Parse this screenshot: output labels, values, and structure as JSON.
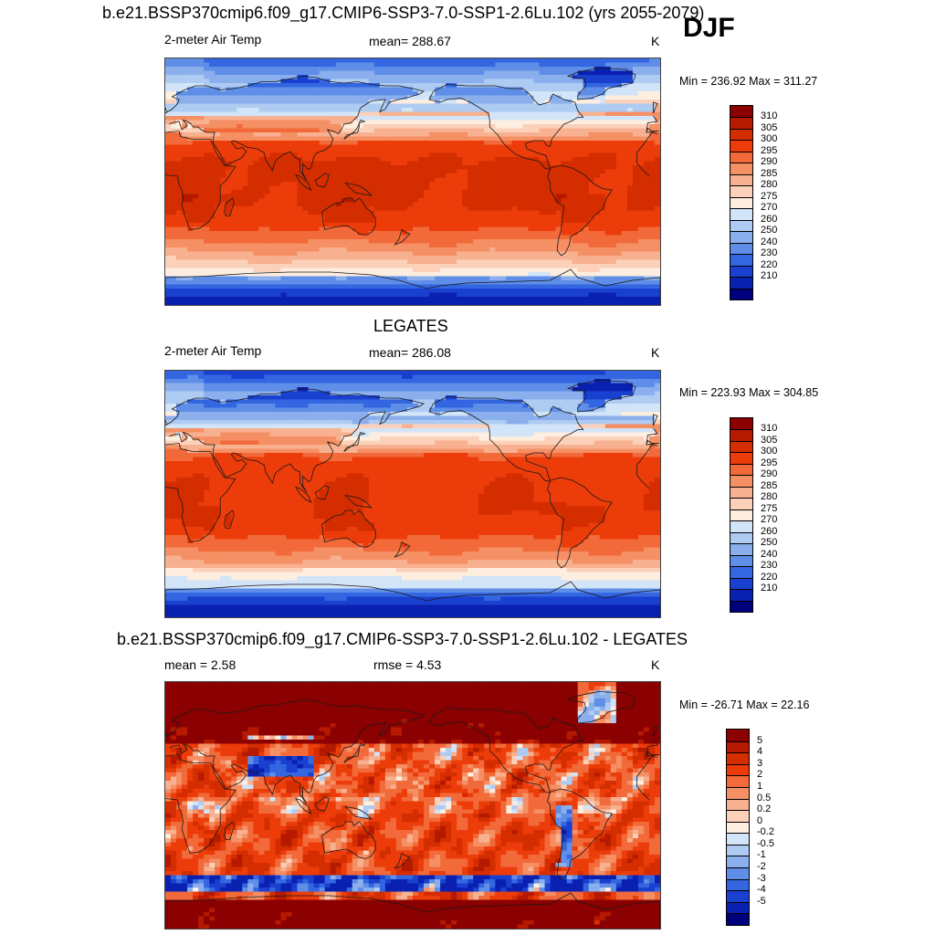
{
  "page": {
    "title": "b.e21.BSSP370cmip6.f09_g17.CMIP6-SSP3-7.0-SSP1-2.6Lu.102 (yrs 2055-2079)",
    "season": "DJF"
  },
  "panels": [
    {
      "id": "model",
      "heading": "",
      "left_label": "2-meter Air Temp",
      "center_label": "mean= 288.67",
      "right_label": "K",
      "minmax": "Min = 236.92 Max = 311.27"
    },
    {
      "id": "obs",
      "heading": "LEGATES",
      "left_label": "2-meter Air Temp",
      "center_label": "mean= 286.08",
      "right_label": "K",
      "minmax": "Min = 223.93 Max = 304.85"
    },
    {
      "id": "diff",
      "heading": "b.e21.BSSP370cmip6.f09_g17.CMIP6-SSP3-7.0-SSP1-2.6Lu.102 - LEGATES",
      "left_label": "mean =   2.58",
      "center_label": "rmse =   4.53",
      "right_label": "K",
      "minmax": "Min = -26.71 Max =  22.16"
    }
  ],
  "chart_data": [
    {
      "type": "heatmap",
      "title": "2-meter Air Temp",
      "units": "K",
      "mean": 288.67,
      "min": 236.92,
      "max": 311.27,
      "levels": [
        210,
        220,
        230,
        240,
        250,
        260,
        270,
        275,
        280,
        285,
        290,
        295,
        300,
        305,
        310
      ],
      "tick_labels": [
        "310",
        "305",
        "300",
        "295",
        "290",
        "285",
        "280",
        "275",
        "270",
        "260",
        "250",
        "240",
        "230",
        "220",
        "210"
      ],
      "colors_top_to_bottom": [
        "#8b0000",
        "#b51a00",
        "#d42d00",
        "#ec3c0a",
        "#f26a3a",
        "#f58f64",
        "#f8b190",
        "#fbd1ba",
        "#fdeee0",
        "#d2e4f8",
        "#aecbf2",
        "#8aafec",
        "#5f8ee8",
        "#3366e0",
        "#1a40d0",
        "#0a20b0",
        "#00007f"
      ]
    },
    {
      "type": "heatmap",
      "title": "2-meter Air Temp",
      "units": "K",
      "mean": 286.08,
      "min": 223.93,
      "max": 304.85,
      "levels": [
        210,
        220,
        230,
        240,
        250,
        260,
        270,
        275,
        280,
        285,
        290,
        295,
        300,
        305,
        310
      ],
      "tick_labels": [
        "310",
        "305",
        "300",
        "295",
        "290",
        "285",
        "280",
        "275",
        "270",
        "260",
        "250",
        "240",
        "230",
        "220",
        "210"
      ],
      "colors_top_to_bottom": [
        "#8b0000",
        "#b51a00",
        "#d42d00",
        "#ec3c0a",
        "#f26a3a",
        "#f58f64",
        "#f8b190",
        "#fbd1ba",
        "#fdeee0",
        "#d2e4f8",
        "#aecbf2",
        "#8aafec",
        "#5f8ee8",
        "#3366e0",
        "#1a40d0",
        "#0a20b0",
        "#00007f"
      ]
    },
    {
      "type": "heatmap",
      "title": "b.e21.BSSP370cmip6.f09_g17.CMIP6-SSP3-7.0-SSP1-2.6Lu.102 - LEGATES",
      "units": "K",
      "mean": 2.58,
      "rmse": 4.53,
      "min": -26.71,
      "max": 22.16,
      "levels": [
        -5,
        -4,
        -3,
        -2,
        -1,
        -0.5,
        -0.2,
        0,
        0.2,
        0.5,
        1,
        2,
        3,
        4,
        5
      ],
      "tick_labels": [
        "5",
        "4",
        "3",
        "2",
        "1",
        "0.5",
        "0.2",
        "0",
        "-0.2",
        "-0.5",
        "-1",
        "-2",
        "-3",
        "-4",
        "-5"
      ],
      "colors_top_to_bottom": [
        "#8b0000",
        "#b51a00",
        "#d42d00",
        "#ec3c0a",
        "#f26a3a",
        "#f58f64",
        "#f8b190",
        "#fbd1ba",
        "#fdeee0",
        "#d2e4f8",
        "#aecbf2",
        "#8aafec",
        "#5f8ee8",
        "#3366e0",
        "#1a40d0",
        "#0a20b0",
        "#00007f"
      ]
    }
  ]
}
